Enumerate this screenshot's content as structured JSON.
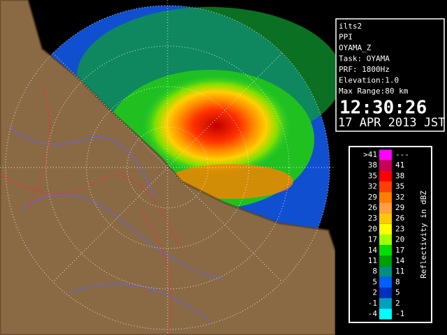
{
  "info": {
    "lines": [
      "ilts2",
      "PPI",
      "OYAMA_Z",
      "Task: OYAMA",
      "PRF: 1800Hz",
      "Elevation:1.0",
      "Max Range:80 km"
    ],
    "time": "12:30:26",
    "date": "17 APR 2013 JST"
  },
  "legend": {
    "title": "Reflectivity in dBZ",
    "rows": [
      {
        "low": ">41",
        "high": "---",
        "color": "#ff00ff"
      },
      {
        "low": "38",
        "high": "41",
        "color": "#c8005a"
      },
      {
        "low": "35",
        "high": "38",
        "color": "#ff0000"
      },
      {
        "low": "32",
        "high": "35",
        "color": "#ff4000"
      },
      {
        "low": "29",
        "high": "32",
        "color": "#ff8000"
      },
      {
        "low": "26",
        "high": "29",
        "color": "#ffa040"
      },
      {
        "low": "23",
        "high": "26",
        "color": "#ffc800"
      },
      {
        "low": "20",
        "high": "23",
        "color": "#ffff00"
      },
      {
        "low": "17",
        "high": "20",
        "color": "#a0ff00"
      },
      {
        "low": "14",
        "high": "17",
        "color": "#00e000"
      },
      {
        "low": "11",
        "high": "14",
        "color": "#00a000"
      },
      {
        "low": "8",
        "high": "11",
        "color": "#009080"
      },
      {
        "low": "5",
        "high": "8",
        "color": "#0060ff"
      },
      {
        "low": "2",
        "high": "5",
        "color": "#0030c0"
      },
      {
        "low": "-1",
        "high": "2",
        "color": "#00a0c0"
      },
      {
        "low": "-4",
        "high": "-1",
        "color": "#00ffff"
      }
    ]
  }
}
